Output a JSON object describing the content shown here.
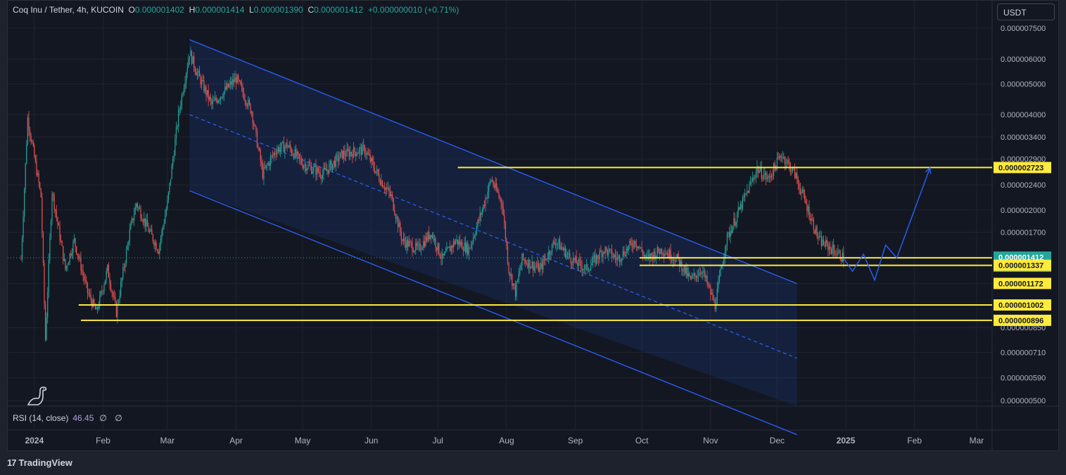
{
  "legend": {
    "symbol": "Coq Inu / Tether, 4h, KUCOIN",
    "open_label": "O",
    "open": "0.000001402",
    "high_label": "H",
    "high": "0.000001414",
    "low_label": "L",
    "low": "0.000001390",
    "close_label": "C",
    "close": "0.000001412",
    "change": "+0.000000010 (+0.71%)"
  },
  "currency_button": "USDT",
  "rsi": {
    "label": "RSI (14, close)",
    "value": "46.45",
    "null1": "∅",
    "null2": "∅"
  },
  "branding": {
    "name": "TradingView",
    "mark": "17"
  },
  "colors": {
    "up": "#26a69a",
    "down": "#ef5350",
    "channel": "#2962ff",
    "level": "#ffeb3b",
    "axis_text": "#b2b5be",
    "background": "#131722"
  },
  "chart_data": {
    "type": "candlestick",
    "x_axis": {
      "ticks": [
        "2024",
        "Feb",
        "Mar",
        "Apr",
        "May",
        "Jun",
        "Jul",
        "Aug",
        "Sep",
        "Oct",
        "Nov",
        "Dec",
        "2025",
        "Feb",
        "Mar"
      ],
      "range": [
        "2023-12-20",
        "2025-03-08"
      ]
    },
    "y_axis": {
      "scale": "log",
      "ticks": [
        "0.000007500",
        "0.000006000",
        "0.000005000",
        "0.000004000",
        "0.000003400",
        "0.000002900",
        "0.000002400",
        "0.000002000",
        "0.000001700",
        "0.000001170",
        "0.000000850",
        "0.000000710",
        "0.000000590",
        "0.000000500"
      ],
      "range": [
        4.8e-07,
        7.9e-06
      ]
    },
    "price_path": [
      [
        "2023-12-26",
        1.4e-06
      ],
      [
        "2023-12-29",
        3.9e-06
      ],
      [
        "2024-01-04",
        2.2e-06
      ],
      [
        "2024-01-06",
        7.8e-07
      ],
      [
        "2024-01-09",
        2.3e-06
      ],
      [
        "2024-01-15",
        1.3e-06
      ],
      [
        "2024-01-19",
        1.6e-06
      ],
      [
        "2024-01-25",
        1.1e-06
      ],
      [
        "2024-01-29",
        9.5e-07
      ],
      [
        "2024-02-03",
        1.3e-06
      ],
      [
        "2024-02-07",
        9.5e-07
      ],
      [
        "2024-02-13",
        1.7e-06
      ],
      [
        "2024-02-16",
        2.1e-06
      ],
      [
        "2024-02-22",
        1.7e-06
      ],
      [
        "2024-02-26",
        1.5e-06
      ],
      [
        "2024-03-01",
        2.1e-06
      ],
      [
        "2024-03-06",
        4e-06
      ],
      [
        "2024-03-11",
        6.3e-06
      ],
      [
        "2024-03-14",
        5.5e-06
      ],
      [
        "2024-03-21",
        4.3e-06
      ],
      [
        "2024-04-01",
        5.2e-06
      ],
      [
        "2024-04-08",
        4.1e-06
      ],
      [
        "2024-04-13",
        2.6e-06
      ],
      [
        "2024-04-19",
        3.1e-06
      ],
      [
        "2024-04-24",
        3.2e-06
      ],
      [
        "2024-05-01",
        2.8e-06
      ],
      [
        "2024-05-10",
        2.6e-06
      ],
      [
        "2024-05-19",
        3e-06
      ],
      [
        "2024-05-29",
        3.1e-06
      ],
      [
        "2024-06-05",
        2.5e-06
      ],
      [
        "2024-06-10",
        2.2e-06
      ],
      [
        "2024-06-15",
        1.6e-06
      ],
      [
        "2024-06-22",
        1.5e-06
      ],
      [
        "2024-06-28",
        1.7e-06
      ],
      [
        "2024-07-03",
        1.4e-06
      ],
      [
        "2024-07-09",
        1.6e-06
      ],
      [
        "2024-07-15",
        1.5e-06
      ],
      [
        "2024-07-21",
        2e-06
      ],
      [
        "2024-07-25",
        2.5e-06
      ],
      [
        "2024-07-30",
        2.1e-06
      ],
      [
        "2024-08-02",
        1.3e-06
      ],
      [
        "2024-08-05",
        1.1e-06
      ],
      [
        "2024-08-08",
        1.4e-06
      ],
      [
        "2024-08-16",
        1.3e-06
      ],
      [
        "2024-08-23",
        1.6e-06
      ],
      [
        "2024-08-30",
        1.4e-06
      ],
      [
        "2024-09-06",
        1.3e-06
      ],
      [
        "2024-09-14",
        1.5e-06
      ],
      [
        "2024-09-20",
        1.4e-06
      ],
      [
        "2024-09-28",
        1.6e-06
      ],
      [
        "2024-10-03",
        1.4e-06
      ],
      [
        "2024-10-10",
        1.5e-06
      ],
      [
        "2024-10-17",
        1.4e-06
      ],
      [
        "2024-10-23",
        1.2e-06
      ],
      [
        "2024-10-28",
        1.3e-06
      ],
      [
        "2024-11-03",
        1e-06
      ],
      [
        "2024-11-08",
        1.6e-06
      ],
      [
        "2024-11-14",
        2e-06
      ],
      [
        "2024-11-22",
        2.7e-06
      ],
      [
        "2024-11-27",
        2.5e-06
      ],
      [
        "2024-12-03",
        3e-06
      ],
      [
        "2024-12-09",
        2.6e-06
      ],
      [
        "2024-12-15",
        2e-06
      ],
      [
        "2024-12-20",
        1.6e-06
      ],
      [
        "2024-12-26",
        1.5e-06
      ],
      [
        "2024-12-31",
        1.41e-06
      ]
    ],
    "channel": {
      "upper": [
        [
          "2024-03-11",
          6.9e-06
        ],
        [
          "2024-12-10",
          1.17e-06
        ]
      ],
      "middle": [
        [
          "2024-03-11",
          4e-06
        ],
        [
          "2024-12-10",
          6.8e-07
        ]
      ],
      "lower": [
        [
          "2024-03-11",
          2.3e-06
        ],
        [
          "2024-12-10",
          3.9e-07
        ]
      ]
    },
    "projection": [
      [
        "2024-12-31",
        1.41e-06
      ],
      [
        "2025-01-04",
        1.28e-06
      ],
      [
        "2025-01-09",
        1.45e-06
      ],
      [
        "2025-01-14",
        1.2e-06
      ],
      [
        "2025-01-19",
        1.55e-06
      ],
      [
        "2025-01-24",
        1.41e-06
      ],
      [
        "2025-02-08",
        2.72e-06
      ]
    ],
    "levels": [
      {
        "value": 2.723e-06,
        "label": "0.000002723",
        "from": "2024-07-10"
      },
      {
        "value": 1.412e-06,
        "label": "0.000001412",
        "from": "2024-09-30",
        "current": true,
        "countdown": "03:02:20"
      },
      {
        "value": 1.337e-06,
        "label": "0.000001337",
        "from": "2024-09-30"
      },
      {
        "value": 1.172e-06,
        "label": "0.000001172",
        "label_only": true
      },
      {
        "value": 1.002e-06,
        "label": "0.000001002",
        "from": "2024-01-21"
      },
      {
        "value": 8.96e-07,
        "label": "0.000000896",
        "from": "2024-01-22"
      }
    ]
  }
}
